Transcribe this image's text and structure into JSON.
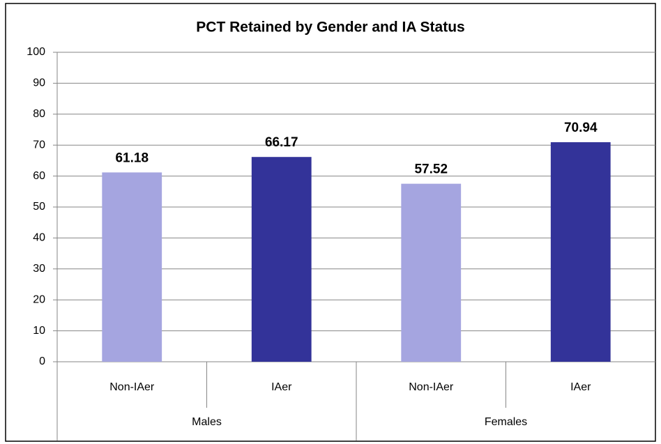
{
  "chart_data": {
    "type": "bar",
    "title": "PCT Retained by Gender and IA Status",
    "categories": [
      "Non-IAer",
      "IAer",
      "Non-IAer",
      "IAer"
    ],
    "groups": [
      "Males",
      "Females"
    ],
    "values": [
      61.18,
      66.17,
      57.52,
      70.94
    ],
    "colors": [
      "#a5a5e0",
      "#333399",
      "#a5a5e0",
      "#333399"
    ],
    "ylim": [
      0,
      100
    ],
    "yticks": [
      0,
      10,
      20,
      30,
      40,
      50,
      60,
      70,
      80,
      90,
      100
    ],
    "grid": true
  }
}
